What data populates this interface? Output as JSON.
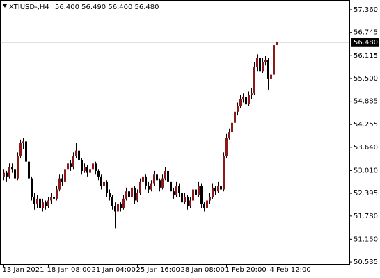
{
  "chart_data": {
    "type": "candlestick",
    "title": "XTIUSD-,H4",
    "ohlc_text": "56.400 56.490 56.400 56.480",
    "categories": [
      "13 Jan 2021",
      null,
      null,
      null,
      null,
      null,
      null,
      null,
      null,
      null,
      null,
      null,
      null,
      null,
      null,
      null,
      "18 Jan 08:00",
      null,
      null,
      null,
      null,
      null,
      null,
      null,
      null,
      null,
      null,
      null,
      null,
      null,
      null,
      null,
      "21 Jan 04:00",
      null,
      null,
      null,
      null,
      null,
      null,
      null,
      null,
      null,
      null,
      null,
      null,
      null,
      null,
      null,
      "25 Jan 16:00",
      null,
      null,
      null,
      null,
      null,
      null,
      null,
      null,
      null,
      null,
      null,
      null,
      null,
      null,
      null,
      "28 Jan 08:00",
      null,
      null,
      null,
      null,
      null,
      null,
      null,
      null,
      null,
      null,
      null,
      null,
      null,
      null,
      null,
      "1 Feb 20:00",
      null,
      null,
      null,
      null,
      null,
      null,
      null,
      null,
      null,
      null,
      null,
      null,
      null,
      null,
      null,
      "4 Feb 12:00",
      null,
      null
    ],
    "open": [
      52.85,
      52.95,
      52.85,
      53.1,
      53.05,
      52.8,
      53.4,
      53.75,
      53.8,
      53.25,
      52.8,
      52.3,
      52.1,
      52.25,
      52.0,
      52.15,
      52.05,
      52.2,
      52.3,
      52.25,
      52.5,
      52.8,
      52.7,
      53.05,
      53.2,
      53.1,
      53.4,
      53.55,
      53.3,
      53.0,
      53.1,
      52.95,
      53.05,
      53.2,
      53.0,
      52.85,
      52.6,
      52.7,
      52.4,
      52.3,
      52.05,
      51.9,
      52.1,
      52.0,
      52.25,
      52.45,
      52.3,
      52.55,
      52.2,
      52.4,
      52.7,
      52.85,
      52.6,
      52.5,
      52.65,
      52.9,
      52.75,
      52.55,
      52.8,
      53.0,
      52.7,
      52.45,
      52.35,
      52.6,
      52.4,
      52.15,
      52.3,
      52.05,
      52.2,
      52.5,
      52.35,
      52.6,
      52.1,
      52.0,
      52.2,
      52.3,
      52.55,
      52.45,
      52.6,
      52.5,
      53.4,
      53.9,
      54.05,
      54.3,
      54.6,
      54.75,
      54.95,
      55.0,
      54.8,
      55.05,
      55.1,
      55.8,
      56.05,
      55.7,
      55.95,
      56.0,
      55.5,
      55.6,
      56.4
    ],
    "high": [
      53.05,
      53.0,
      53.2,
      53.2,
      53.1,
      53.5,
      53.85,
      53.9,
      53.85,
      53.3,
      52.85,
      52.4,
      52.35,
      52.3,
      52.25,
      52.2,
      52.3,
      52.4,
      52.4,
      52.6,
      52.9,
      52.9,
      53.15,
      53.3,
      53.3,
      53.5,
      53.75,
      53.6,
      53.35,
      53.2,
      53.15,
      53.15,
      53.3,
      53.25,
      53.05,
      52.9,
      52.8,
      52.75,
      52.5,
      52.35,
      52.15,
      52.2,
      52.15,
      52.35,
      52.55,
      52.5,
      52.65,
      52.6,
      52.5,
      52.8,
      52.95,
      52.9,
      52.7,
      52.75,
      53.0,
      53.0,
      52.8,
      52.9,
      53.1,
      53.05,
      52.75,
      52.55,
      52.7,
      52.65,
      52.45,
      52.4,
      52.35,
      52.3,
      52.6,
      52.55,
      52.7,
      52.65,
      52.15,
      52.3,
      52.4,
      52.65,
      52.6,
      52.7,
      52.65,
      53.5,
      54.0,
      54.15,
      54.4,
      54.7,
      54.85,
      55.05,
      55.1,
      55.05,
      55.15,
      55.25,
      55.95,
      56.15,
      56.1,
      56.05,
      56.1,
      56.05,
      55.75,
      56.5,
      56.49
    ],
    "low": [
      52.75,
      52.7,
      52.8,
      52.95,
      52.7,
      52.75,
      53.35,
      53.6,
      53.15,
      52.7,
      52.2,
      51.95,
      52.0,
      51.9,
      51.9,
      51.95,
      52.0,
      52.1,
      52.15,
      52.2,
      52.45,
      52.6,
      52.65,
      52.95,
      53.0,
      53.05,
      53.35,
      53.2,
      52.9,
      52.95,
      52.85,
      52.9,
      53.0,
      52.9,
      52.75,
      52.5,
      52.55,
      52.3,
      52.2,
      51.95,
      51.45,
      51.8,
      51.9,
      51.95,
      52.2,
      52.2,
      52.25,
      52.1,
      52.15,
      52.35,
      52.65,
      52.5,
      52.4,
      52.45,
      52.6,
      52.65,
      52.45,
      52.5,
      52.75,
      52.6,
      51.85,
      52.25,
      52.3,
      52.3,
      52.05,
      52.1,
      51.95,
      52.0,
      52.15,
      52.25,
      52.3,
      52.0,
      51.9,
      51.75,
      52.1,
      52.25,
      52.35,
      52.4,
      52.4,
      52.45,
      53.35,
      53.85,
      54.0,
      54.25,
      54.5,
      54.7,
      54.85,
      54.7,
      54.75,
      54.95,
      55.05,
      55.7,
      55.6,
      55.65,
      55.85,
      55.2,
      55.35,
      55.55,
      56.4
    ],
    "close": [
      52.95,
      52.85,
      53.1,
      53.05,
      52.8,
      53.4,
      53.75,
      53.8,
      53.25,
      52.8,
      52.3,
      52.1,
      52.25,
      52.0,
      52.15,
      52.05,
      52.2,
      52.3,
      52.25,
      52.5,
      52.8,
      52.7,
      53.05,
      53.2,
      53.1,
      53.4,
      53.55,
      53.3,
      53.0,
      53.1,
      52.95,
      53.05,
      53.2,
      53.0,
      52.85,
      52.6,
      52.7,
      52.4,
      52.3,
      52.05,
      51.9,
      52.1,
      52.0,
      52.25,
      52.45,
      52.3,
      52.55,
      52.2,
      52.4,
      52.7,
      52.85,
      52.6,
      52.5,
      52.65,
      52.9,
      52.75,
      52.55,
      52.8,
      53.0,
      52.7,
      52.45,
      52.35,
      52.6,
      52.4,
      52.15,
      52.3,
      52.05,
      52.2,
      52.5,
      52.35,
      52.6,
      52.1,
      52.0,
      52.2,
      52.3,
      52.55,
      52.45,
      52.6,
      52.5,
      53.4,
      53.9,
      54.05,
      54.3,
      54.6,
      54.75,
      54.95,
      55.0,
      54.8,
      55.05,
      55.1,
      55.8,
      56.05,
      55.7,
      55.95,
      56.0,
      55.5,
      55.6,
      56.4,
      56.48
    ],
    "up_color": "#8b1a1a",
    "down_color": "#000000",
    "wick_color": "#000000",
    "ylim": [
      50.48,
      57.585
    ],
    "yticks": [
      {
        "value": 57.36,
        "label": "57.360"
      },
      56.745,
      56.115,
      {
        "value": 55.5,
        "label": "55.500"
      },
      54.885,
      54.255,
      {
        "value": 53.64,
        "label": "53.640"
      },
      {
        "value": 53.01,
        "label": "53.010"
      },
      52.395,
      {
        "value": 51.78,
        "label": "51.780"
      },
      {
        "value": 51.15,
        "label": "51.150"
      },
      50.535
    ],
    "price_line": {
      "value": 56.48,
      "label": "56.480"
    },
    "price_line_color": "#778899"
  }
}
